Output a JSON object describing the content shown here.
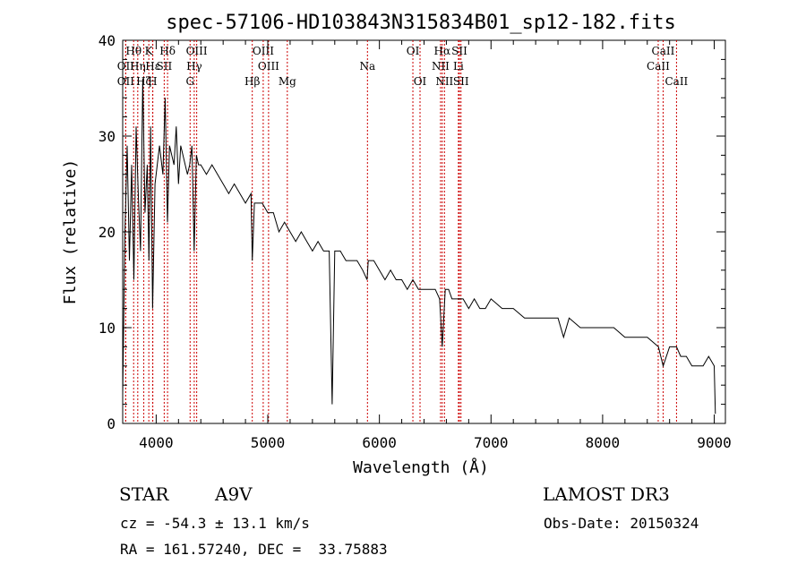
{
  "chart_data": {
    "type": "line",
    "title": "spec-57106-HD103843N315834B01_sp12-182.fits",
    "xlabel": "Wavelength (Å)",
    "ylabel": "Flux (relative)",
    "xlim": [
      3700,
      9100
    ],
    "ylim": [
      0,
      40
    ],
    "xticks": [
      4000,
      5000,
      6000,
      7000,
      8000,
      9000
    ],
    "yticks": [
      0,
      10,
      20,
      30,
      40
    ],
    "line_color": "#000000",
    "marker_color": "#cc0000",
    "series": [
      {
        "name": "flux",
        "x": [
          3700,
          3720,
          3740,
          3760,
          3780,
          3800,
          3820,
          3840,
          3860,
          3880,
          3900,
          3920,
          3935,
          3950,
          3968,
          3990,
          4010,
          4030,
          4060,
          4080,
          4101,
          4120,
          4140,
          4160,
          4180,
          4200,
          4220,
          4240,
          4260,
          4280,
          4300,
          4320,
          4340,
          4360,
          4380,
          4400,
          4450,
          4500,
          4550,
          4600,
          4650,
          4700,
          4750,
          4800,
          4850,
          4861,
          4880,
          4900,
          4950,
          5000,
          5050,
          5100,
          5150,
          5200,
          5250,
          5300,
          5350,
          5400,
          5450,
          5500,
          5550,
          5577,
          5600,
          5650,
          5700,
          5750,
          5800,
          5850,
          5890,
          5900,
          5950,
          6000,
          6050,
          6100,
          6150,
          6200,
          6250,
          6300,
          6350,
          6400,
          6450,
          6500,
          6540,
          6563,
          6590,
          6620,
          6650,
          6700,
          6750,
          6800,
          6850,
          6900,
          6950,
          7000,
          7100,
          7200,
          7300,
          7400,
          7500,
          7600,
          7650,
          7700,
          7800,
          7900,
          8000,
          8100,
          8200,
          8300,
          8400,
          8500,
          8542,
          8600,
          8662,
          8700,
          8750,
          8800,
          8850,
          8900,
          8950,
          9000,
          9010
        ],
        "y": [
          3,
          20,
          29,
          17,
          27,
          15,
          31,
          24,
          18,
          36,
          22,
          27,
          17,
          31,
          12,
          25,
          27,
          29,
          26,
          34,
          21,
          29,
          28,
          27,
          31,
          25,
          29,
          28,
          27,
          26,
          27,
          29,
          18,
          28,
          27,
          27,
          26,
          27,
          26,
          25,
          24,
          25,
          24,
          23,
          24,
          17,
          23,
          23,
          23,
          22,
          22,
          20,
          21,
          20,
          19,
          20,
          19,
          18,
          19,
          18,
          18,
          2,
          18,
          18,
          17,
          17,
          17,
          16,
          15,
          17,
          17,
          16,
          15,
          16,
          15,
          15,
          14,
          15,
          14,
          14,
          14,
          14,
          13,
          8,
          14,
          14,
          13,
          13,
          13,
          12,
          13,
          12,
          12,
          13,
          12,
          12,
          11,
          11,
          11,
          11,
          9,
          11,
          10,
          10,
          10,
          10,
          9,
          9,
          9,
          8,
          6,
          8,
          8,
          7,
          7,
          6,
          6,
          6,
          7,
          6,
          1
        ]
      }
    ],
    "line_markers": [
      {
        "label": "Hθ",
        "x": 3798,
        "row": 0
      },
      {
        "label": "OII",
        "x": 3727,
        "row": 1
      },
      {
        "label": "OII",
        "x": 3727,
        "row": 2
      },
      {
        "label": "Hη",
        "x": 3835,
        "row": 1
      },
      {
        "label": "Hζ",
        "x": 3889,
        "row": 2
      },
      {
        "label": "K",
        "x": 3934,
        "row": 0
      },
      {
        "label": "Hε",
        "x": 3970,
        "row": 1
      },
      {
        "label": "H",
        "x": 3968,
        "row": 2
      },
      {
        "label": "Hδ",
        "x": 4102,
        "row": 0
      },
      {
        "label": "SII",
        "x": 4072,
        "row": 1
      },
      {
        "label": "G",
        "x": 4304,
        "row": 2
      },
      {
        "label": "OIII",
        "x": 4363,
        "row": 0
      },
      {
        "label": "Hγ",
        "x": 4341,
        "row": 1
      },
      {
        "label": "Hβ",
        "x": 4861,
        "row": 2
      },
      {
        "label": "OIII",
        "x": 4959,
        "row": 0
      },
      {
        "label": "OIII",
        "x": 5007,
        "row": 1
      },
      {
        "label": "Mg",
        "x": 5175,
        "row": 2
      },
      {
        "label": "Na",
        "x": 5893,
        "row": 1
      },
      {
        "label": "OI",
        "x": 6300,
        "row": 0
      },
      {
        "label": "OI",
        "x": 6364,
        "row": 2
      },
      {
        "label": "Hα",
        "x": 6563,
        "row": 0
      },
      {
        "label": "NII",
        "x": 6548,
        "row": 1
      },
      {
        "label": "NII",
        "x": 6583,
        "row": 2
      },
      {
        "label": "SII",
        "x": 6717,
        "row": 0
      },
      {
        "label": "Li",
        "x": 6708,
        "row": 1
      },
      {
        "label": "SII",
        "x": 6731,
        "row": 2
      },
      {
        "label": "CaII",
        "x": 8542,
        "row": 0
      },
      {
        "label": "CaII",
        "x": 8498,
        "row": 1
      },
      {
        "label": "CaII",
        "x": 8662,
        "row": 2
      }
    ]
  },
  "info": {
    "object_class": "STAR",
    "subclass": "A9V",
    "survey": "LAMOST DR3",
    "redshift": "cz = -54.3 ± 13.1 km/s",
    "obs_date": "Obs-Date: 20150324",
    "coords": "RA = 161.57240, DEC =  33.75883"
  }
}
